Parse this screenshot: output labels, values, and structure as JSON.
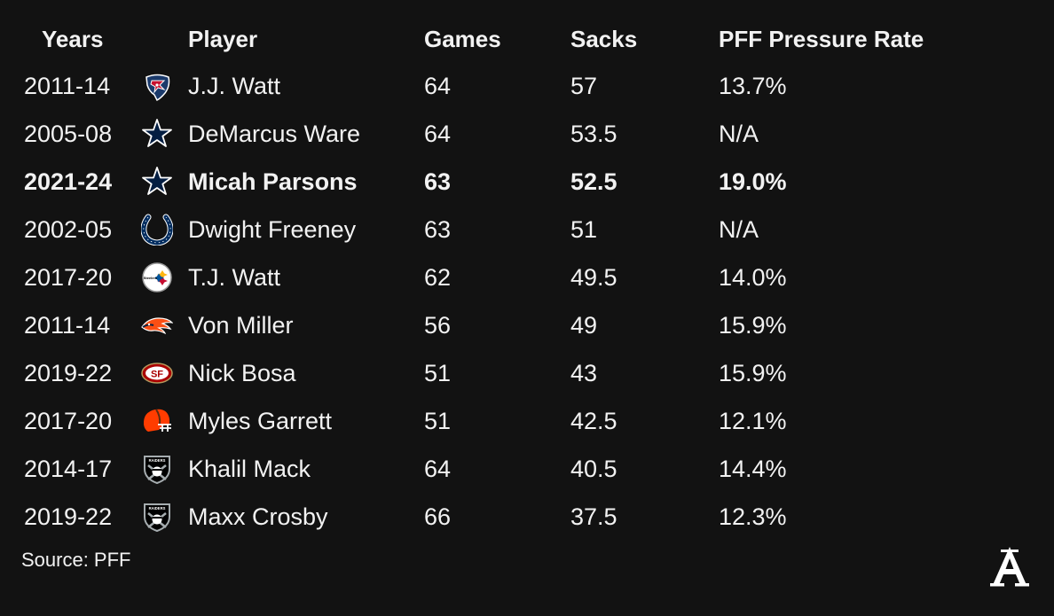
{
  "chart_data": {
    "type": "table",
    "columns": [
      "Years",
      "Player",
      "Games",
      "Sacks",
      "PFF Pressure Rate"
    ],
    "rows": [
      {
        "years": "2011-14",
        "team_icon": "texans-logo-icon",
        "player": "J.J. Watt",
        "games": "64",
        "sacks": "57",
        "pressure_rate": "13.7%",
        "highlight": false
      },
      {
        "years": "2005-08",
        "team_icon": "cowboys-star-icon",
        "player": "DeMarcus Ware",
        "games": "64",
        "sacks": "53.5",
        "pressure_rate": "N/A",
        "highlight": false
      },
      {
        "years": "2021-24",
        "team_icon": "cowboys-star-icon",
        "player": "Micah Parsons",
        "games": "63",
        "sacks": "52.5",
        "pressure_rate": "19.0%",
        "highlight": true
      },
      {
        "years": "2002-05",
        "team_icon": "colts-horseshoe-icon",
        "player": "Dwight Freeney",
        "games": "63",
        "sacks": "51",
        "pressure_rate": "N/A",
        "highlight": false
      },
      {
        "years": "2017-20",
        "team_icon": "steelers-logo-icon",
        "player": "T.J. Watt",
        "games": "62",
        "sacks": "49.5",
        "pressure_rate": "14.0%",
        "highlight": false
      },
      {
        "years": "2011-14",
        "team_icon": "broncos-logo-icon",
        "player": "Von Miller",
        "games": "56",
        "sacks": "49",
        "pressure_rate": "15.9%",
        "highlight": false
      },
      {
        "years": "2019-22",
        "team_icon": "49ers-logo-icon",
        "player": "Nick Bosa",
        "games": "51",
        "sacks": "43",
        "pressure_rate": "15.9%",
        "highlight": false
      },
      {
        "years": "2017-20",
        "team_icon": "browns-helmet-icon",
        "player": "Myles Garrett",
        "games": "51",
        "sacks": "42.5",
        "pressure_rate": "12.1%",
        "highlight": false
      },
      {
        "years": "2014-17",
        "team_icon": "raiders-shield-icon",
        "player": "Khalil Mack",
        "games": "64",
        "sacks": "40.5",
        "pressure_rate": "14.4%",
        "highlight": false
      },
      {
        "years": "2019-22",
        "team_icon": "raiders-shield-icon",
        "player": "Maxx Crosby",
        "games": "66",
        "sacks": "37.5",
        "pressure_rate": "12.3%",
        "highlight": false
      }
    ],
    "source": "Source: PFF"
  },
  "colors": {
    "background": "#121212",
    "text": "#f2f2f2",
    "texans_navy": "#1b3a6b",
    "texans_red": "#c8102e",
    "cowboys_navy": "#041e42",
    "colts_blue": "#002c5f",
    "broncos_orange": "#fb4f14",
    "niners_red": "#aa0000",
    "niners_gold": "#b3995d",
    "browns_orange": "#ff3c00",
    "raiders_silver": "#a5acaf"
  },
  "brand_icon": "athletic-logo-icon"
}
